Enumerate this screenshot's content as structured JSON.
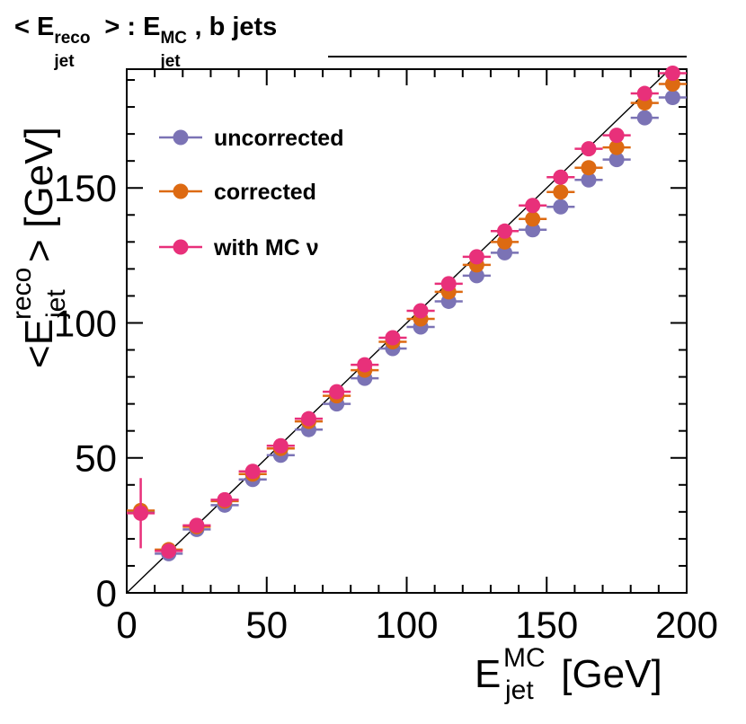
{
  "title": {
    "prefix": "< E",
    "prefix_sup": "reco",
    "prefix_sub": "jet",
    "middle": " > : E",
    "middle_sup": "MC",
    "middle_sub": "jet",
    "suffix": ", b jets"
  },
  "axes": {
    "x_label": "E",
    "x_label_sup": "MC",
    "x_label_sub": "jet",
    "x_label_unit": " [GeV]",
    "y_label_lt": "<E",
    "y_label_sup": "reco",
    "y_label_sub": "jet",
    "y_label_gt": ">",
    "y_label_unit": " [GeV]"
  },
  "legend": {
    "items": [
      {
        "label": "uncorrected",
        "color": "#7b73b5"
      },
      {
        "label": "corrected",
        "color": "#dd6a12"
      },
      {
        "label": "with MC ν",
        "color": "#e8307a"
      }
    ]
  },
  "chart_data": {
    "type": "scatter",
    "title": "< E_jet^reco > : E_jet^MC, b jets",
    "xlabel": "E_jet^MC [GeV]",
    "ylabel": "<E_jet^reco> [GeV]",
    "xlim": [
      0,
      200
    ],
    "ylim": [
      0,
      194
    ],
    "x_ticks": [
      0,
      50,
      100,
      150,
      200
    ],
    "y_ticks": [
      0,
      50,
      100,
      150
    ],
    "x_tick_labels": [
      "0",
      "50",
      "100",
      "150",
      "200"
    ],
    "y_tick_labels": [
      "0",
      "50",
      "100",
      "150"
    ],
    "x_bin_halfwidth": 5,
    "reference_line": "y = x",
    "x": [
      5,
      15,
      25,
      35,
      45,
      55,
      65,
      75,
      85,
      95,
      105,
      115,
      125,
      135,
      145,
      155,
      165,
      175,
      185,
      195
    ],
    "series": [
      {
        "name": "uncorrected",
        "color": "#7b73b5",
        "values": [
          30,
          14.5,
          23.5,
          32.5,
          42,
          51,
          60.5,
          70,
          79.5,
          90.5,
          98.5,
          108,
          117.5,
          126,
          134.5,
          143,
          153,
          160.5,
          176,
          183.5
        ],
        "errors": [
          0.8,
          0.8,
          0.5,
          0.5,
          0.5,
          0.5,
          0.5,
          0.5,
          0.5,
          0.5,
          0.5,
          0.5,
          0.5,
          0.5,
          0.5,
          0.5,
          0.5,
          0.5,
          0.5,
          0.5
        ]
      },
      {
        "name": "corrected",
        "color": "#dd6a12",
        "values": [
          30.5,
          16,
          24.5,
          34,
          44,
          53.5,
          63.5,
          73,
          82.5,
          93,
          101.5,
          111.5,
          121.5,
          130,
          138.5,
          148.5,
          157.5,
          165,
          181.5,
          188.5
        ],
        "errors": [
          1.0,
          0.8,
          0.5,
          0.5,
          0.5,
          0.5,
          0.5,
          0.5,
          0.5,
          0.5,
          0.5,
          0.5,
          0.5,
          0.5,
          0.5,
          0.5,
          0.5,
          0.5,
          0.5,
          0.5
        ]
      },
      {
        "name": "with MC ν",
        "color": "#e8307a",
        "values": [
          29.5,
          15.5,
          25,
          34.5,
          45,
          54.5,
          64.5,
          74.5,
          84.5,
          94.5,
          104.5,
          114.5,
          124.5,
          134,
          143.5,
          154,
          164.5,
          169.5,
          185,
          192.5
        ],
        "errors": [
          13,
          0.8,
          0.5,
          0.5,
          0.5,
          0.5,
          0.5,
          0.5,
          0.5,
          0.5,
          0.5,
          0.5,
          0.5,
          0.5,
          0.5,
          0.5,
          0.5,
          0.5,
          0.5,
          0.5
        ]
      }
    ]
  }
}
